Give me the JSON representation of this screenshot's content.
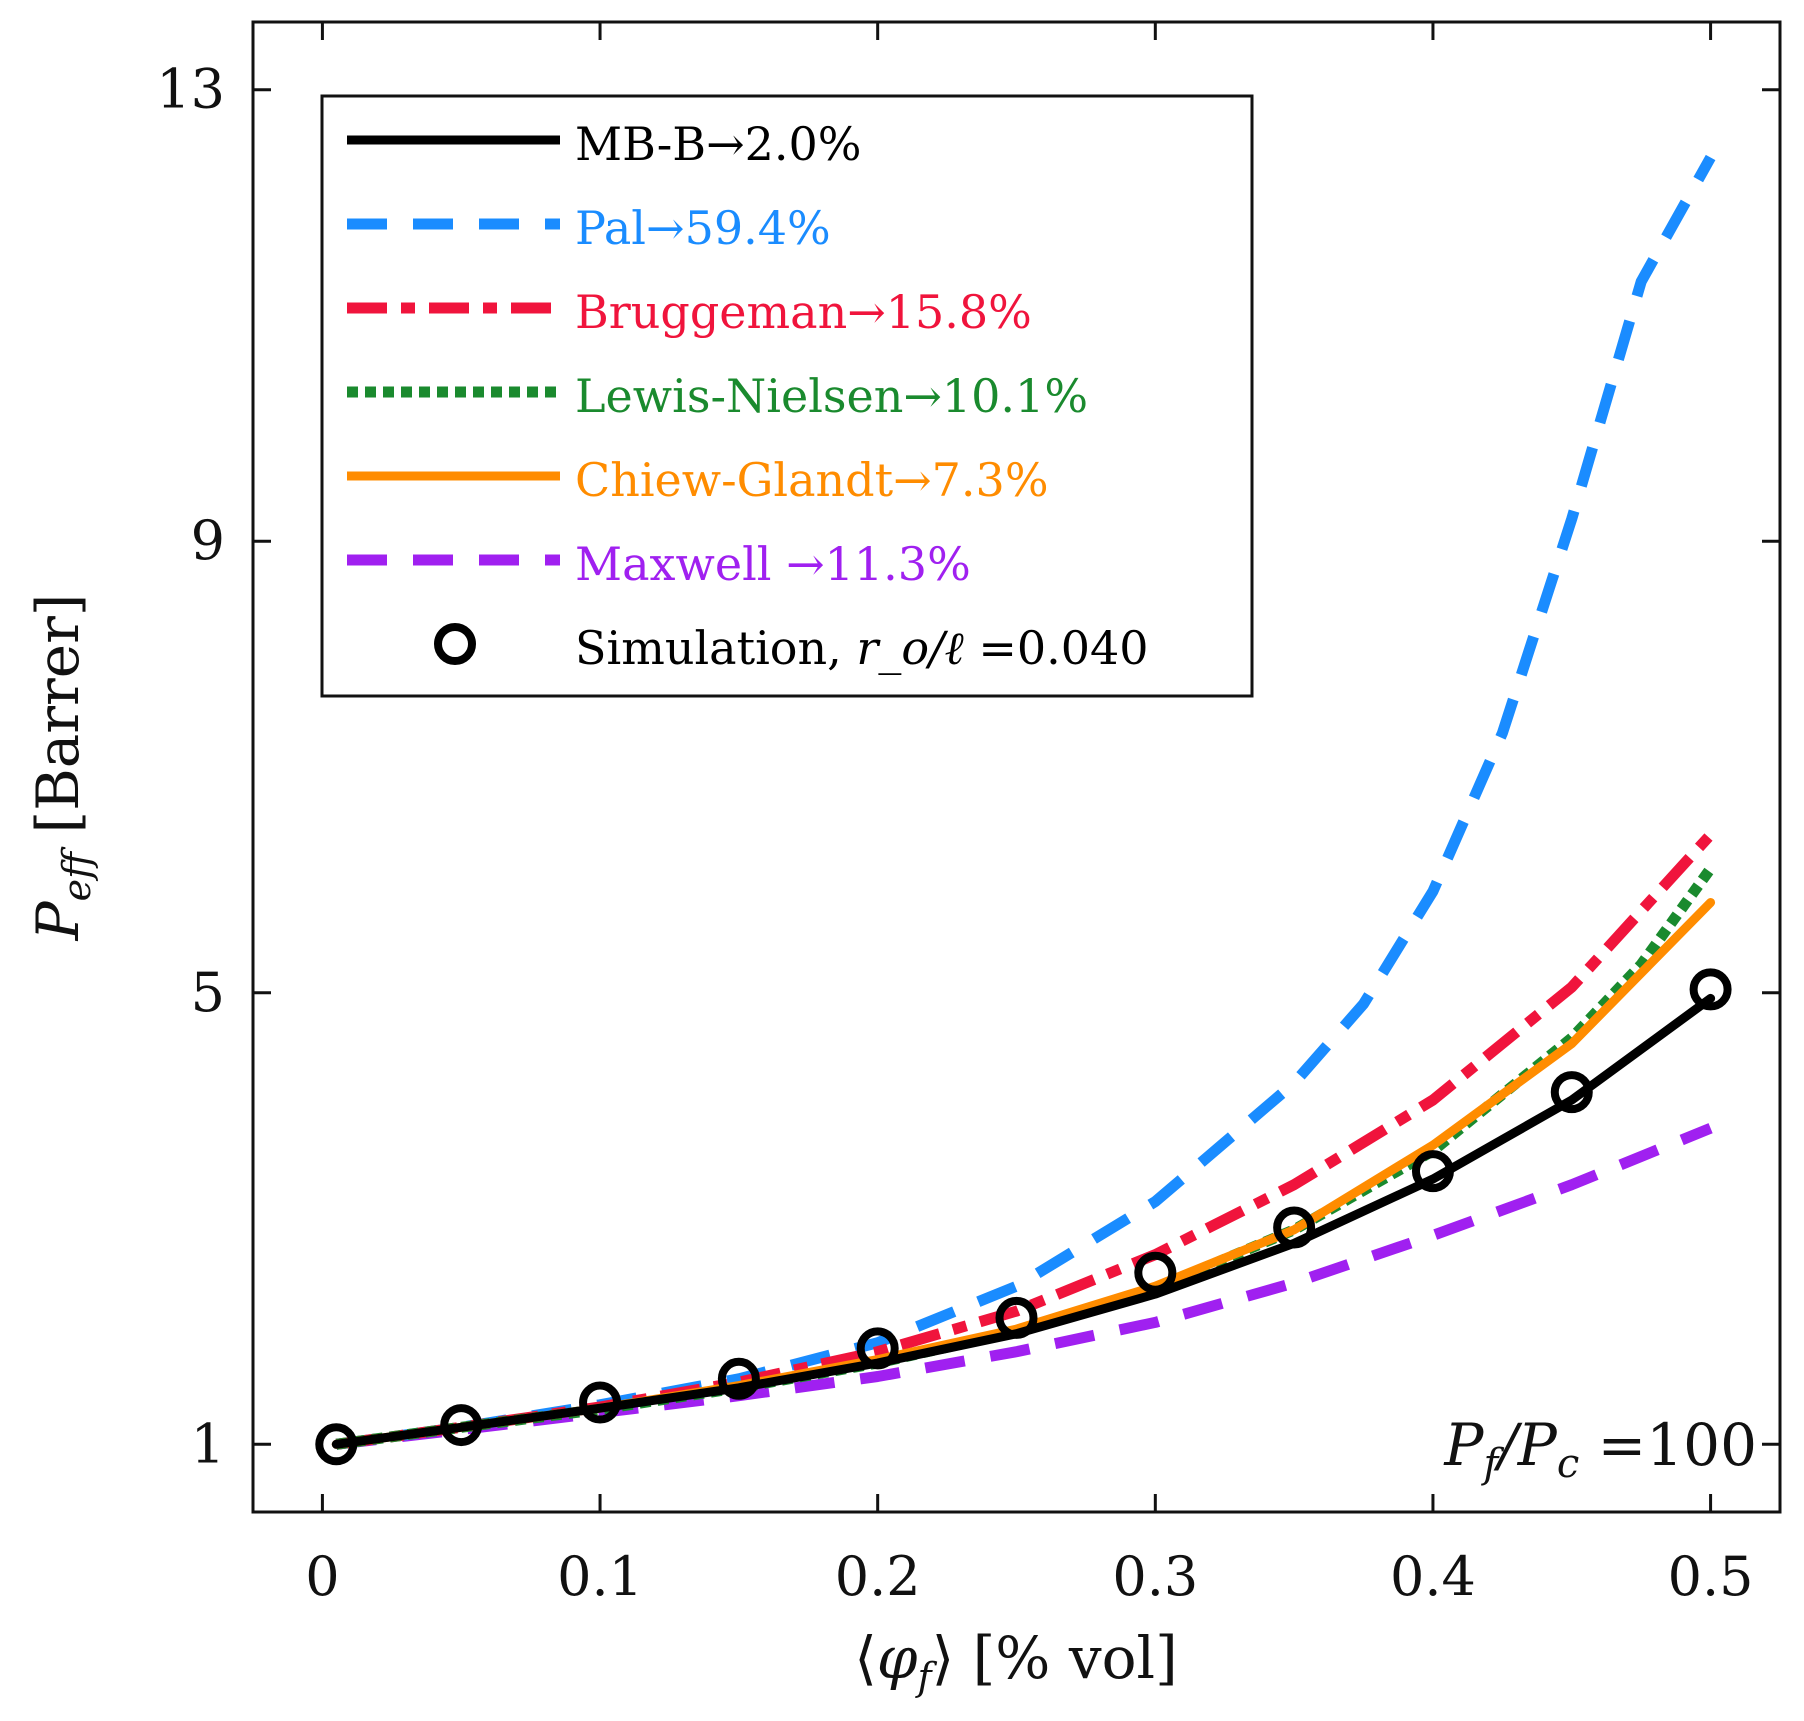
{
  "chart_data": {
    "type": "line",
    "xlabel": "⟨φ_f⟩ [% vol]",
    "ylabel": "P_eff [Barrer]",
    "xlim": [
      -0.025,
      0.525
    ],
    "ylim": [
      0.4,
      13.6
    ],
    "xticks": [
      0,
      0.1,
      0.2,
      0.3,
      0.4,
      0.5
    ],
    "xtick_labels": [
      "0",
      "0.1",
      "0.2",
      "0.3",
      "0.4",
      "0.5"
    ],
    "yticks": [
      1,
      5,
      9,
      13
    ],
    "ytick_labels": [
      "1",
      "5",
      "9",
      "13"
    ],
    "grid": false,
    "legend_position": "top-left",
    "annotation": "P_f/P_c =100",
    "series": [
      {
        "name": "MB-B",
        "legend": "MB-B→2.0%",
        "color": "#000000",
        "style": "solid",
        "x": [
          0.005,
          0.05,
          0.1,
          0.15,
          0.2,
          0.25,
          0.3,
          0.35,
          0.4,
          0.45,
          0.5
        ],
        "y": [
          1.0,
          1.15,
          1.32,
          1.5,
          1.72,
          1.98,
          2.33,
          2.78,
          3.35,
          4.05,
          4.95
        ]
      },
      {
        "name": "Pal",
        "legend": "Pal→59.4%",
        "color": "#1A8CFF",
        "style": "dashed",
        "x": [
          0.005,
          0.05,
          0.1,
          0.15,
          0.2,
          0.25,
          0.3,
          0.35,
          0.375,
          0.4,
          0.425,
          0.45,
          0.475,
          0.5
        ],
        "y": [
          1.0,
          1.15,
          1.35,
          1.58,
          1.9,
          2.4,
          3.15,
          4.2,
          4.9,
          5.9,
          7.3,
          9.2,
          11.3,
          12.4
        ]
      },
      {
        "name": "Bruggeman",
        "legend": "Bruggeman→15.8%",
        "color": "#F0143C",
        "style": "dashdot",
        "x": [
          0.005,
          0.05,
          0.1,
          0.15,
          0.2,
          0.25,
          0.3,
          0.35,
          0.4,
          0.45,
          0.5
        ],
        "y": [
          1.0,
          1.15,
          1.33,
          1.55,
          1.82,
          2.18,
          2.68,
          3.3,
          4.05,
          5.05,
          6.4
        ]
      },
      {
        "name": "Lewis-Nielsen",
        "legend": "Lewis-Nielsen→10.1%",
        "color": "#1A8A2E",
        "style": "dotted",
        "x": [
          0.005,
          0.05,
          0.1,
          0.15,
          0.2,
          0.25,
          0.3,
          0.35,
          0.4,
          0.45,
          0.475,
          0.5
        ],
        "y": [
          1.0,
          1.15,
          1.31,
          1.5,
          1.72,
          2.0,
          2.38,
          2.9,
          3.6,
          4.6,
          5.25,
          6.1
        ]
      },
      {
        "name": "Chiew-Glandt",
        "legend": "Chiew-Glandt→7.3%",
        "color": "#FF8C00",
        "style": "solid",
        "x": [
          0.005,
          0.05,
          0.1,
          0.15,
          0.2,
          0.25,
          0.3,
          0.35,
          0.4,
          0.45,
          0.5
        ],
        "y": [
          1.0,
          1.15,
          1.32,
          1.52,
          1.75,
          2.02,
          2.4,
          2.9,
          3.65,
          4.55,
          5.8
        ]
      },
      {
        "name": "Maxwell",
        "legend": "Maxwell →11.3%",
        "color": "#A020F0",
        "style": "dashed",
        "x": [
          0.005,
          0.05,
          0.1,
          0.15,
          0.2,
          0.25,
          0.3,
          0.35,
          0.4,
          0.45,
          0.5
        ],
        "y": [
          1.0,
          1.13,
          1.28,
          1.43,
          1.6,
          1.82,
          2.08,
          2.43,
          2.85,
          3.3,
          3.8
        ]
      },
      {
        "name": "Simulation",
        "legend_prefix": "Simulation, ",
        "legend_var": "r_o/ℓ",
        "legend_value": " =0.040",
        "color": "#000000",
        "style": "markers",
        "x": [
          0.005,
          0.05,
          0.1,
          0.15,
          0.2,
          0.25,
          0.3,
          0.35,
          0.4,
          0.45,
          0.5
        ],
        "y": [
          1.0,
          1.17,
          1.37,
          1.58,
          1.85,
          2.12,
          2.52,
          2.92,
          3.42,
          4.12,
          5.03
        ]
      }
    ]
  }
}
